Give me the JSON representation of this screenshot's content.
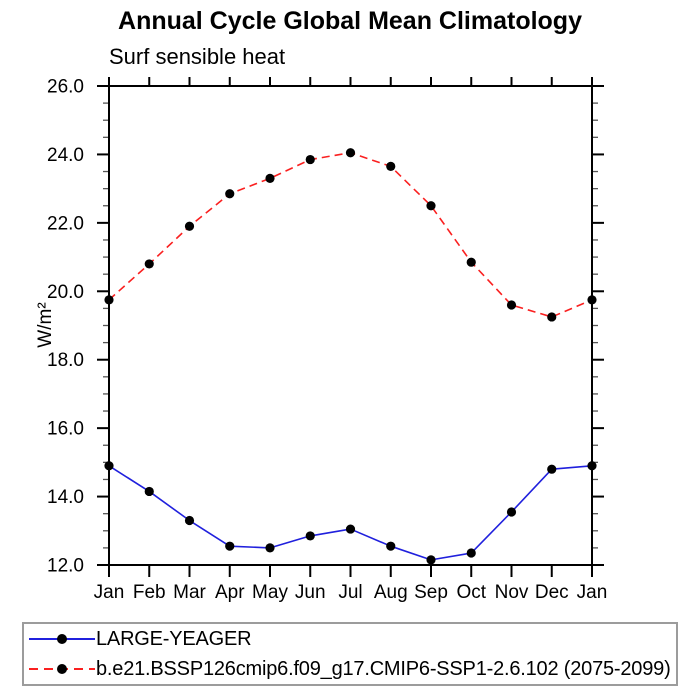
{
  "chart_data": {
    "type": "line",
    "title": "Annual Cycle Global Mean Climatology",
    "subtitle": "Surf sensible heat",
    "xlabel": "",
    "ylabel": "W/m²",
    "categories": [
      "Jan",
      "Feb",
      "Mar",
      "Apr",
      "May",
      "Jun",
      "Jul",
      "Aug",
      "Sep",
      "Oct",
      "Nov",
      "Dec",
      "Jan"
    ],
    "ylim": [
      12.0,
      26.0
    ],
    "ytick_step": 2.0,
    "yminor_step": 0.5,
    "ytick_labels": [
      "12.0",
      "14.0",
      "16.0",
      "18.0",
      "20.0",
      "22.0",
      "24.0",
      "26.0"
    ],
    "grid": false,
    "legend_position": "bottom-left-box",
    "axis_color": "#000000",
    "marker": "filled-circle",
    "marker_color": "#000000",
    "series": [
      {
        "name": "LARGE-YEAGER",
        "color": "#2020dd",
        "line_style": "solid",
        "values": [
          14.9,
          14.15,
          13.3,
          12.55,
          12.5,
          12.85,
          13.05,
          12.55,
          12.15,
          12.35,
          13.55,
          14.8,
          14.9
        ]
      },
      {
        "name": "b.e21.BSSP126cmip6.f09_g17.CMIP6-SSP1-2.6.102 (2075-2099)",
        "color": "#fa2020",
        "line_style": "dashed",
        "values": [
          19.75,
          20.8,
          21.9,
          22.85,
          23.3,
          23.85,
          24.05,
          23.65,
          22.5,
          20.85,
          19.6,
          19.25,
          19.75
        ]
      }
    ]
  }
}
